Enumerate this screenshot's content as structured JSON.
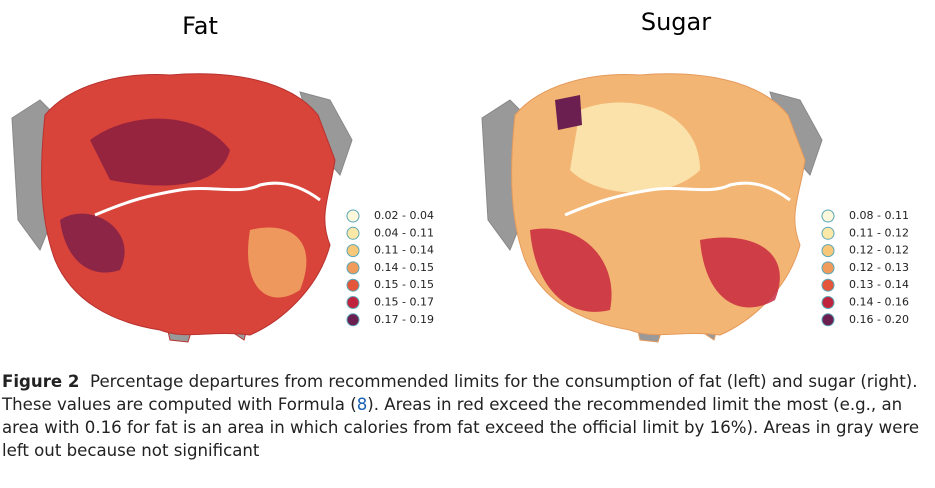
{
  "maps": [
    {
      "title": "Fat",
      "legend": [
        {
          "label": "0.02 - 0.04",
          "color": "#fdf8dc"
        },
        {
          "label": "0.04 - 0.11",
          "color": "#fbe7a6"
        },
        {
          "label": "0.11 - 0.14",
          "color": "#f7c87a"
        },
        {
          "label": "0.14 - 0.15",
          "color": "#f09b5c"
        },
        {
          "label": "0.15 - 0.15",
          "color": "#e3563a"
        },
        {
          "label": "0.15 - 0.17",
          "color": "#c0233e"
        },
        {
          "label": "0.17 - 0.19",
          "color": "#6a1f50"
        }
      ]
    },
    {
      "title": "Sugar",
      "legend": [
        {
          "label": "0.08 - 0.11",
          "color": "#fdf8dc"
        },
        {
          "label": "0.11 - 0.12",
          "color": "#fbe7a6"
        },
        {
          "label": "0.12 - 0.12",
          "color": "#f7c87a"
        },
        {
          "label": "0.12 - 0.13",
          "color": "#f09b5c"
        },
        {
          "label": "0.13 - 0.14",
          "color": "#e3563a"
        },
        {
          "label": "0.14 - 0.16",
          "color": "#c0233e"
        },
        {
          "label": "0.16 - 0.20",
          "color": "#6a1f50"
        }
      ]
    }
  ],
  "caption": {
    "label": "Figure 2",
    "text_start": "Percentage departures from recommended limits for the consumption of fat (left) and sugar (right). These values are computed with Formula (",
    "ref": "8",
    "text_end": "). Areas in red exceed the recommended limit the most (e.g., an area with 0.16 for fat is an area in which calories from fat exceed the official limit by 16%). Areas in gray were left out because not significant"
  }
}
